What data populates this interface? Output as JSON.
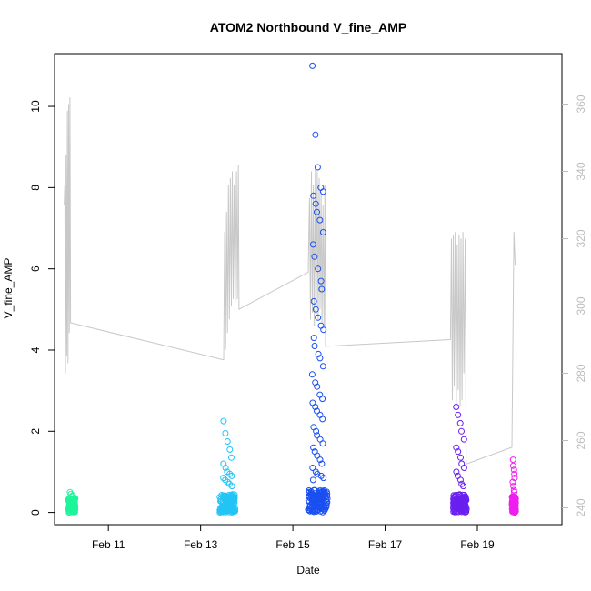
{
  "chart_data": {
    "type": "scatter",
    "title": "ATOM2 Northbound V_fine_AMP",
    "xlabel": "Date",
    "ylabel": "V_fine_AMP",
    "x_axis": {
      "type": "date",
      "range": [
        "2024-02-09T20:00",
        "2024-02-20T20:00"
      ],
      "ticks": [
        {
          "value": "2024-02-11T00:00",
          "label": "Feb 11"
        },
        {
          "value": "2024-02-13T00:00",
          "label": "Feb 13"
        },
        {
          "value": "2024-02-15T00:00",
          "label": "Feb 15"
        },
        {
          "value": "2024-02-17T00:00",
          "label": "Feb 17"
        },
        {
          "value": "2024-02-19T00:00",
          "label": "Feb 19"
        }
      ]
    },
    "y_axis": {
      "range": [
        -0.3,
        11.3
      ],
      "ticks": [
        0,
        2,
        4,
        6,
        8,
        10
      ]
    },
    "y2_axis": {
      "range": [
        235,
        375
      ],
      "ticks": [
        240,
        260,
        280,
        300,
        320,
        340,
        360
      ],
      "color": "#bdbdbd"
    },
    "grid": false,
    "colors": {
      "grey_line": "#c8c8c8",
      "cluster_1": "#1ef59a",
      "cluster_2": "#22c4f5",
      "cluster_3": "#1a4ff0",
      "cluster_4": "#6a1ff0",
      "cluster_5": "#f01ef0"
    },
    "scatter_clusters": [
      {
        "color": "#1ef59a",
        "center": "2024-02-10T05:00",
        "hours_width": 3.5,
        "base_max": 0.35,
        "outliers": [
          0.5,
          0.45,
          0.4,
          0.42
        ]
      },
      {
        "color": "#22c4f5",
        "center": "2024-02-13T14:00",
        "hours_width": 8,
        "base_max": 0.45,
        "outliers": [
          2.25,
          1.95,
          1.75,
          1.55,
          1.35,
          1.2,
          1.1,
          1.0,
          0.95,
          0.9,
          0.85,
          0.8,
          0.75,
          0.7,
          0.65
        ]
      },
      {
        "color": "#1a4ff0",
        "center": "2024-02-15T13:00",
        "hours_width": 10,
        "base_max": 0.55,
        "outliers": [
          11.0,
          9.3,
          8.5,
          8.0,
          7.9,
          7.8,
          7.6,
          7.4,
          7.2,
          6.9,
          6.6,
          6.3,
          6.0,
          5.7,
          5.5,
          5.2,
          5.0,
          4.8,
          4.6,
          4.5,
          4.3,
          4.1,
          3.9,
          3.8,
          3.6,
          3.4,
          3.2,
          3.1,
          2.9,
          2.8,
          2.7,
          2.6,
          2.5,
          2.4,
          2.3,
          2.1,
          2.0,
          1.9,
          1.8,
          1.7,
          1.6,
          1.5,
          1.4,
          1.3,
          1.2,
          1.1,
          1.0,
          0.95,
          0.9,
          0.85,
          0.8
        ]
      },
      {
        "color": "#6a1ff0",
        "center": "2024-02-18T15:00",
        "hours_width": 7,
        "base_max": 0.45,
        "outliers": [
          2.6,
          2.4,
          2.2,
          2.0,
          1.8,
          1.6,
          1.5,
          1.35,
          1.2,
          1.1,
          1.0,
          0.9,
          0.8,
          0.7,
          0.65
        ]
      },
      {
        "color": "#f01ef0",
        "center": "2024-02-19T19:00",
        "hours_width": 2,
        "base_max": 0.4,
        "outliers": [
          1.3,
          1.15,
          1.05,
          0.95,
          0.85,
          0.75,
          0.65,
          0.55,
          0.5
        ]
      }
    ],
    "secondary_line": {
      "color": "#c8c8c8",
      "axis": "y2",
      "points": [
        [
          "2024-02-10T01:00",
          330
        ],
        [
          "2024-02-10T01:20",
          336
        ],
        [
          "2024-02-10T01:40",
          280
        ],
        [
          "2024-02-10T02:00",
          345
        ],
        [
          "2024-02-10T02:20",
          285
        ],
        [
          "2024-02-10T02:40",
          358
        ],
        [
          "2024-02-10T03:00",
          283
        ],
        [
          "2024-02-10T03:20",
          360
        ],
        [
          "2024-02-10T03:40",
          292
        ],
        [
          "2024-02-10T04:00",
          362
        ],
        [
          "2024-02-10T04:20",
          295
        ],
        [
          "2024-02-13T12:00",
          284
        ],
        [
          "2024-02-13T12:30",
          322
        ],
        [
          "2024-02-13T13:00",
          287
        ],
        [
          "2024-02-13T13:30",
          328
        ],
        [
          "2024-02-13T14:00",
          292
        ],
        [
          "2024-02-13T14:30",
          336
        ],
        [
          "2024-02-13T15:00",
          296
        ],
        [
          "2024-02-13T15:30",
          338
        ],
        [
          "2024-02-13T16:00",
          300
        ],
        [
          "2024-02-13T16:30",
          340
        ],
        [
          "2024-02-13T17:00",
          302
        ],
        [
          "2024-02-13T17:30",
          336
        ],
        [
          "2024-02-13T18:00",
          301
        ],
        [
          "2024-02-13T18:40",
          340
        ],
        [
          "2024-02-13T19:10",
          302
        ],
        [
          "2024-02-13T19:40",
          342
        ],
        [
          "2024-02-13T20:00",
          299
        ],
        [
          "2024-02-15T08:00",
          310
        ],
        [
          "2024-02-15T08:40",
          332
        ],
        [
          "2024-02-15T09:10",
          296
        ],
        [
          "2024-02-15T09:40",
          340
        ],
        [
          "2024-02-15T10:10",
          298
        ],
        [
          "2024-02-15T10:40",
          336
        ],
        [
          "2024-02-15T11:10",
          294
        ],
        [
          "2024-02-15T11:40",
          341
        ],
        [
          "2024-02-15T12:10",
          297
        ],
        [
          "2024-02-15T12:40",
          340
        ],
        [
          "2024-02-15T13:10",
          296
        ],
        [
          "2024-02-15T13:40",
          338
        ],
        [
          "2024-02-15T14:10",
          299
        ],
        [
          "2024-02-15T14:40",
          334
        ],
        [
          "2024-02-15T15:10",
          295
        ],
        [
          "2024-02-15T15:40",
          330
        ],
        [
          "2024-02-15T16:10",
          294
        ],
        [
          "2024-02-15T16:40",
          336
        ],
        [
          "2024-02-15T17:00",
          288
        ],
        [
          "2024-02-18T10:00",
          290
        ],
        [
          "2024-02-18T10:30",
          320
        ],
        [
          "2024-02-18T11:00",
          272
        ],
        [
          "2024-02-18T11:30",
          321
        ],
        [
          "2024-02-18T12:00",
          276
        ],
        [
          "2024-02-18T12:30",
          322
        ],
        [
          "2024-02-18T13:00",
          270
        ],
        [
          "2024-02-18T13:30",
          318
        ],
        [
          "2024-02-18T14:00",
          275
        ],
        [
          "2024-02-18T14:30",
          321
        ],
        [
          "2024-02-18T15:00",
          270
        ],
        [
          "2024-02-18T15:30",
          320
        ],
        [
          "2024-02-18T16:00",
          272
        ],
        [
          "2024-02-18T16:30",
          322
        ],
        [
          "2024-02-18T17:00",
          280
        ],
        [
          "2024-02-18T17:40",
          320
        ],
        [
          "2024-02-18T18:10",
          253
        ],
        [
          "2024-02-19T18:00",
          258
        ],
        [
          "2024-02-19T19:00",
          322
        ],
        [
          "2024-02-19T19:40",
          312
        ]
      ]
    }
  }
}
